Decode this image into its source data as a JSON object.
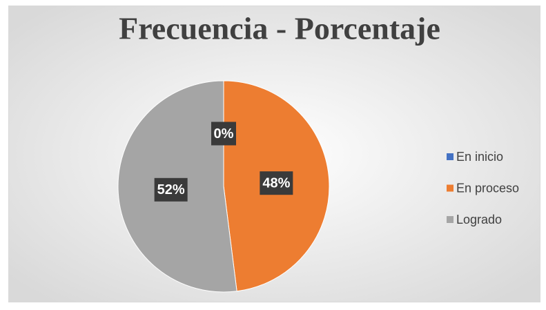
{
  "chart_data": {
    "type": "pie",
    "title": "Frecuencia - Porcentaje",
    "categories": [
      "En inicio",
      "En proceso",
      "Logrado"
    ],
    "values": [
      0,
      48,
      52
    ],
    "value_labels": [
      "0%",
      "48%",
      "52%"
    ],
    "colors": [
      "#4472c4",
      "#ed7d31",
      "#a5a5a5"
    ],
    "legend": "right"
  }
}
